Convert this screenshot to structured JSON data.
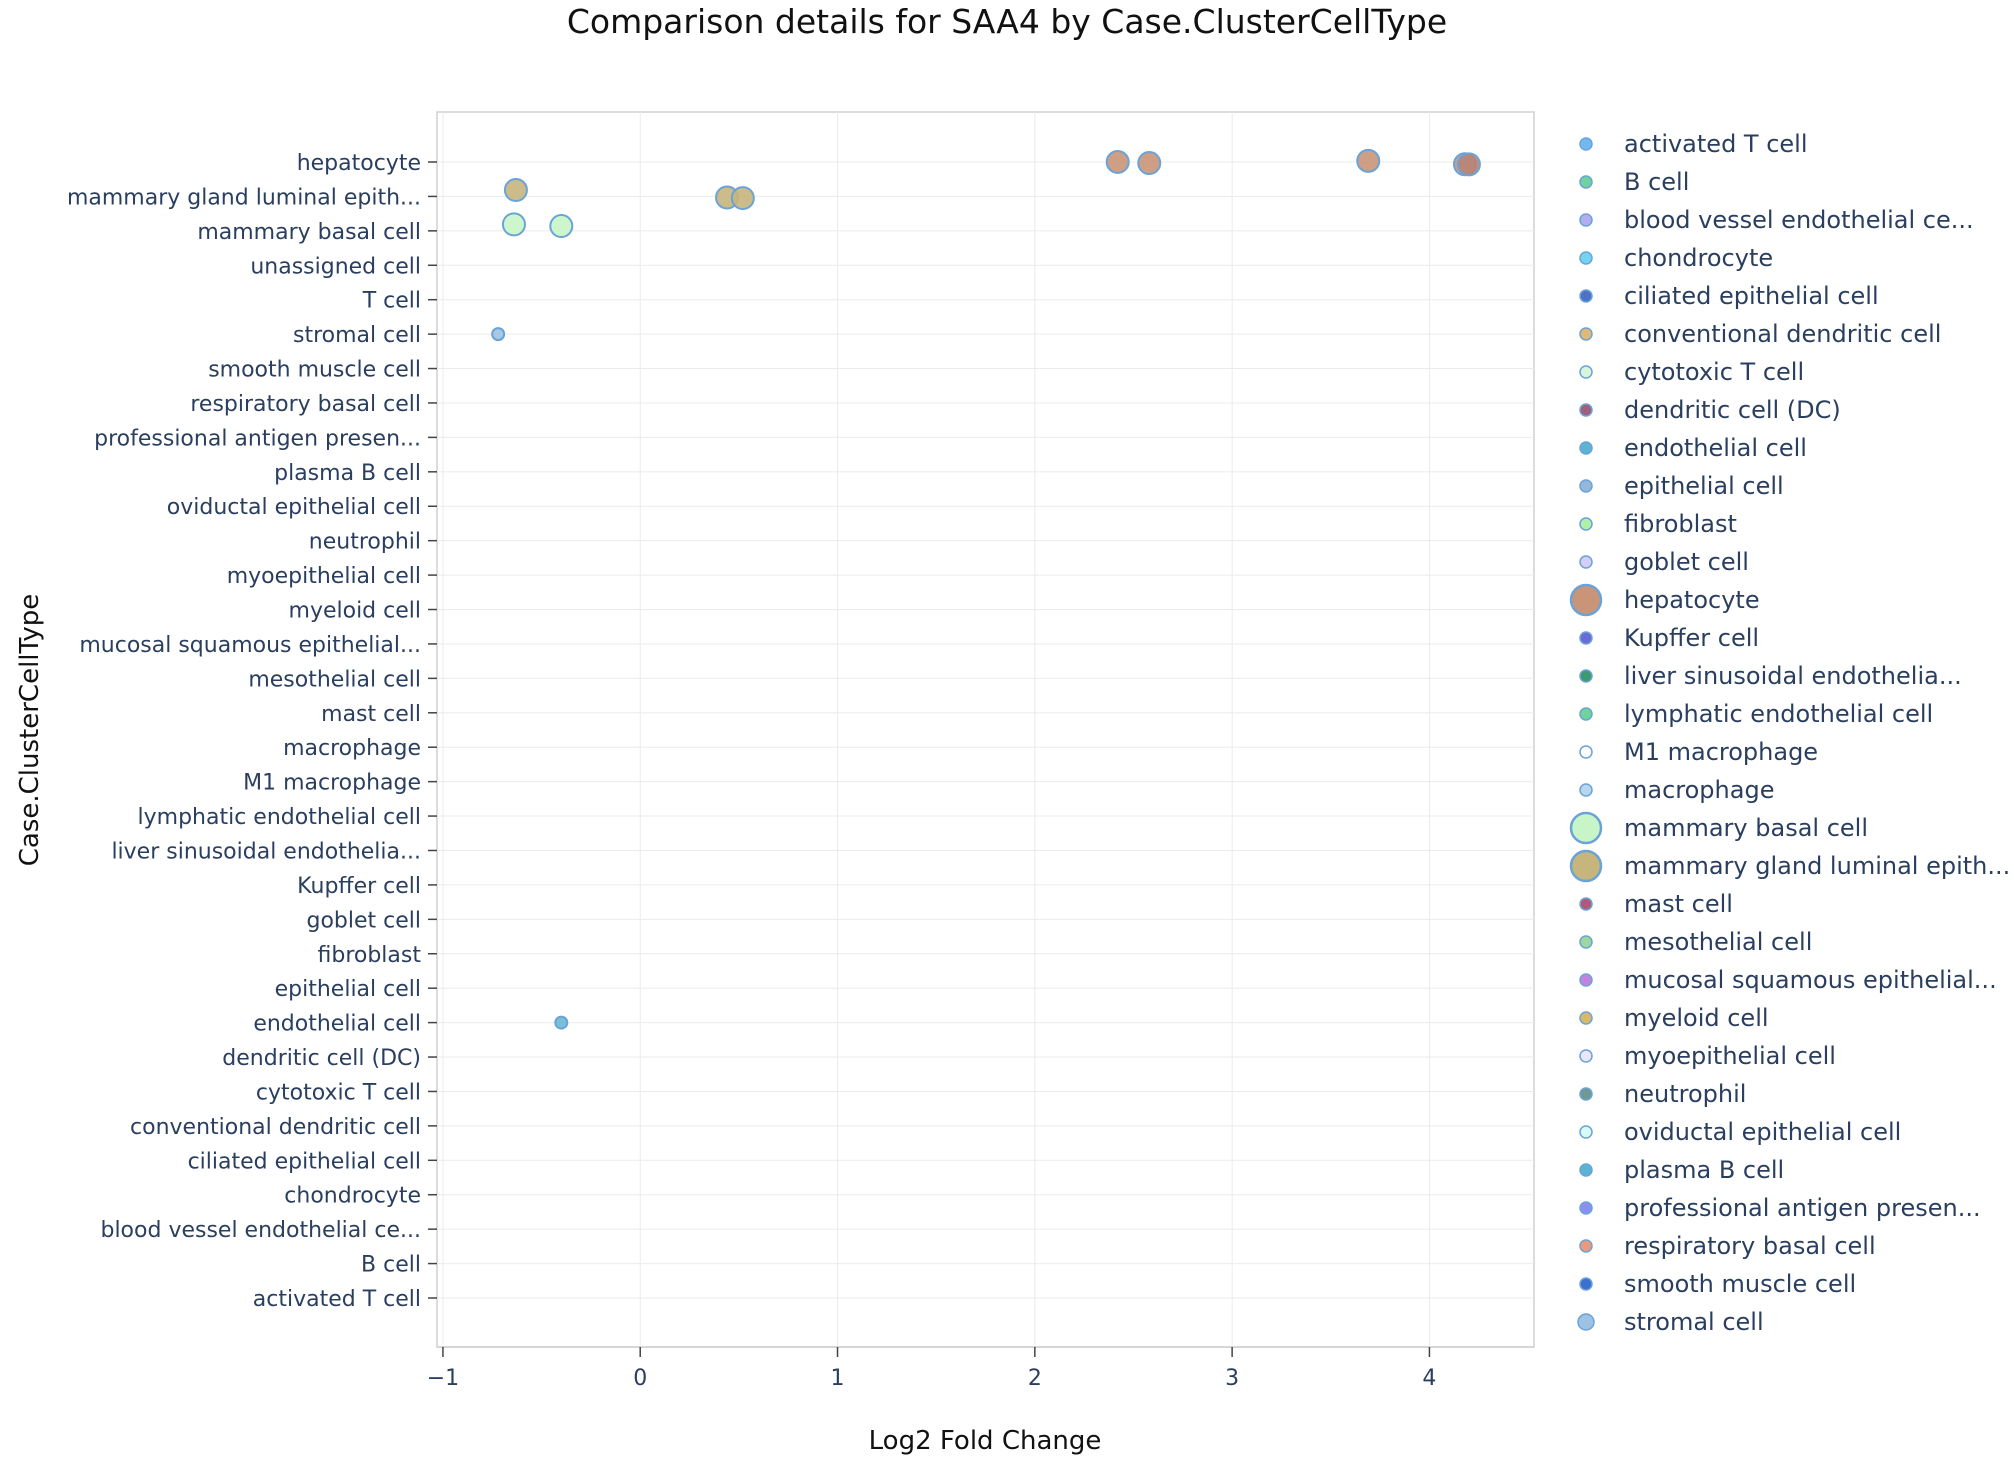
{
  "chart_data": {
    "type": "scatter",
    "title": "Comparison details for SAA4 by Case.ClusterCellType",
    "xlabel": "Log2 Fold Change",
    "ylabel": "Case.ClusterCellType",
    "xlim": [
      -1.03,
      4.53
    ],
    "xticks": [
      {
        "value": -1,
        "label": "−1"
      },
      {
        "value": 0,
        "label": "0"
      },
      {
        "value": 1,
        "label": "1"
      },
      {
        "value": 2,
        "label": "2"
      },
      {
        "value": 3,
        "label": "3"
      },
      {
        "value": 4,
        "label": "4"
      }
    ],
    "categories": [
      "activated T cell",
      "B cell",
      "blood vessel endothelial ce...",
      "chondrocyte",
      "ciliated epithelial cell",
      "conventional dendritic cell",
      "cytotoxic T cell",
      "dendritic cell (DC)",
      "endothelial cell",
      "epithelial cell",
      "fibroblast",
      "goblet cell",
      "Kupffer cell",
      "liver sinusoidal endothelia...",
      "lymphatic endothelial cell",
      "M1 macrophage",
      "macrophage",
      "mast cell",
      "mesothelial cell",
      "mucosal squamous epithelial...",
      "myeloid cell",
      "myoepithelial cell",
      "neutrophil",
      "oviductal epithelial  cell",
      "plasma B cell",
      "professional antigen presen...",
      "respiratory basal cell",
      "smooth muscle cell",
      "stromal cell",
      "T cell",
      "unassigned cell",
      "mammary basal cell",
      "mammary gland luminal epith...",
      "hepatocyte"
    ],
    "points": [
      {
        "series": "hepatocyte",
        "category": "hepatocyte",
        "x": 2.42,
        "size": "large",
        "color": "#c99478"
      },
      {
        "series": "hepatocyte",
        "category": "hepatocyte",
        "x": 2.58,
        "size": "large",
        "color": "#c99478"
      },
      {
        "series": "hepatocyte",
        "category": "hepatocyte",
        "x": 3.69,
        "size": "large",
        "color": "#c99478"
      },
      {
        "series": "hepatocyte",
        "category": "hepatocyte",
        "x": 4.18,
        "size": "large",
        "color": "#c99478"
      },
      {
        "series": "hepatocyte",
        "category": "hepatocyte",
        "x": 4.2,
        "size": "large",
        "color": "#b78375"
      },
      {
        "series": "mammary gland luminal epith...",
        "category": "mammary gland luminal epith...",
        "x": -0.63,
        "size": "large",
        "color": "#c6b57c"
      },
      {
        "series": "mammary gland luminal epith...",
        "category": "mammary gland luminal epith...",
        "x": 0.44,
        "size": "large",
        "color": "#c6b57c"
      },
      {
        "series": "mammary gland luminal epith...",
        "category": "mammary gland luminal epith...",
        "x": 0.52,
        "size": "large",
        "color": "#c6b57c"
      },
      {
        "series": "mammary basal cell",
        "category": "mammary basal cell",
        "x": -0.64,
        "size": "large",
        "color": "#c8f5c8"
      },
      {
        "series": "mammary basal cell",
        "category": "mammary basal cell",
        "x": -0.4,
        "size": "large",
        "color": "#c8f5c8"
      },
      {
        "series": "stromal cell",
        "category": "stromal cell",
        "x": -0.72,
        "size": "small",
        "color": "#9ec2e3"
      },
      {
        "series": "endothelial cell",
        "category": "endothelial cell",
        "x": -0.4,
        "size": "small",
        "color": "#6cb8d6"
      }
    ],
    "legend": [
      {
        "name": "activated T cell",
        "color": "#72b9f0",
        "size": "small"
      },
      {
        "name": "B cell",
        "color": "#6fd39a",
        "size": "small"
      },
      {
        "name": "blood vessel endothelial ce...",
        "color": "#b3aef0",
        "size": "small"
      },
      {
        "name": "chondrocyte",
        "color": "#74d4f0",
        "size": "small"
      },
      {
        "name": "ciliated epithelial cell",
        "color": "#4f72c8",
        "size": "small"
      },
      {
        "name": "conventional dendritic cell",
        "color": "#e2b876",
        "size": "small"
      },
      {
        "name": "cytotoxic T cell",
        "color": "#d6f5dc",
        "size": "small"
      },
      {
        "name": "dendritic cell (DC)",
        "color": "#a0607a",
        "size": "small"
      },
      {
        "name": "endothelial cell",
        "color": "#5bb5d2",
        "size": "small"
      },
      {
        "name": "epithelial cell",
        "color": "#94b8d8",
        "size": "small"
      },
      {
        "name": "fibroblast",
        "color": "#b0f0a8",
        "size": "small"
      },
      {
        "name": "goblet cell",
        "color": "#d4cdf8",
        "size": "small"
      },
      {
        "name": "hepatocyte",
        "color": "#c99478",
        "size": "large"
      },
      {
        "name": "Kupffer cell",
        "color": "#6a6ad8",
        "size": "small"
      },
      {
        "name": "liver sinusoidal endothelia...",
        "color": "#3c9a6e",
        "size": "small"
      },
      {
        "name": "lymphatic endothelial cell",
        "color": "#6fd39a",
        "size": "small"
      },
      {
        "name": "M1 macrophage",
        "color": "#ffffff",
        "size": "small"
      },
      {
        "name": "macrophage",
        "color": "#b9d6ef",
        "size": "small"
      },
      {
        "name": "mammary basal cell",
        "color": "#c8f5c8",
        "size": "large"
      },
      {
        "name": "mammary gland luminal epith...",
        "color": "#c6b57c",
        "size": "large"
      },
      {
        "name": "mast cell",
        "color": "#b05a78",
        "size": "small"
      },
      {
        "name": "mesothelial cell",
        "color": "#9fd89f",
        "size": "small"
      },
      {
        "name": "mucosal squamous epithelial...",
        "color": "#c283e0",
        "size": "small"
      },
      {
        "name": "myeloid cell",
        "color": "#dab86a",
        "size": "small"
      },
      {
        "name": "myoepithelial cell",
        "color": "#ece6fb",
        "size": "small"
      },
      {
        "name": "neutrophil",
        "color": "#6f9a92",
        "size": "small"
      },
      {
        "name": "oviductal epithelial  cell",
        "color": "#d9fbf7",
        "size": "small"
      },
      {
        "name": "plasma B cell",
        "color": "#5bb5d2",
        "size": "small"
      },
      {
        "name": "professional antigen presen...",
        "color": "#8a8ff0",
        "size": "small"
      },
      {
        "name": "respiratory basal cell",
        "color": "#ee9a7a",
        "size": "small"
      },
      {
        "name": "smooth muscle cell",
        "color": "#3d6fd0",
        "size": "small"
      },
      {
        "name": "stromal cell",
        "color": "#9ec2e3",
        "size": "medium"
      }
    ]
  }
}
